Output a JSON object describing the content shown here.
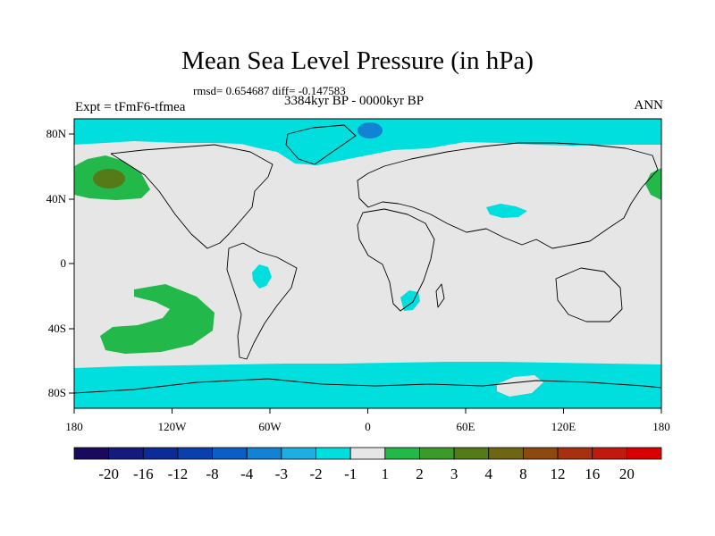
{
  "title": "Mean Sea Level Pressure (in hPa)",
  "stats": "rmsd= 0.654687 diff= -0.147583",
  "experiment": "Expt = tFmF6-tfmea",
  "period": "3384kyr BP - 0000kyr BP",
  "season": "ANN",
  "map": {
    "lon_ticks": [
      "180",
      "120W",
      "60W",
      "0",
      "60E",
      "120E",
      "180"
    ],
    "lat_ticks": [
      "80N",
      "40N",
      "0",
      "40S",
      "80S"
    ]
  },
  "colorbar": {
    "labels": [
      "-20",
      "-16",
      "-12",
      "-8",
      "-4",
      "-3",
      "-2",
      "-1",
      "1",
      "2",
      "3",
      "4",
      "8",
      "12",
      "16",
      "20"
    ],
    "colors": [
      "#1a0a5e",
      "#141b7c",
      "#0b2b96",
      "#0a3fae",
      "#0a5ec6",
      "#1283d2",
      "#1eaee2",
      "#00dede",
      "#e6e6e6",
      "#22b84a",
      "#3c9a2a",
      "#557a18",
      "#6e6612",
      "#8c4a10",
      "#a8300e",
      "#c01a10",
      "#d80000"
    ]
  },
  "colors": {
    "neutral": "#e6e6e6",
    "neg_weak": "#00dede",
    "neg_mid": "#1283d2",
    "pos_weak": "#22b84a",
    "pos_mid": "#557a18"
  }
}
